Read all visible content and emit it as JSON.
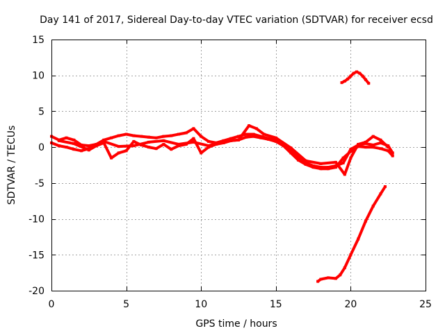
{
  "chart_data": {
    "type": "scatter",
    "title": "Day 141 of 2017, Sidereal Day-to-day VTEC variation (SDTVAR) for receiver ecsd",
    "xlabel": "GPS time / hours",
    "ylabel": "SDTVAR / TECUs",
    "xlim": [
      0,
      25
    ],
    "ylim": [
      -20,
      15
    ],
    "xticks": [
      0,
      5,
      10,
      15,
      20,
      25
    ],
    "yticks": [
      -20,
      -15,
      -10,
      -5,
      0,
      5,
      10,
      15
    ],
    "grid": true,
    "color": "#ff0000",
    "series": [
      {
        "name": "track-a",
        "x": [
          0.0,
          0.5,
          1.0,
          1.5,
          2.0,
          2.5,
          3.0,
          3.5,
          4.0,
          4.5,
          5.0,
          5.5,
          6.0,
          6.5,
          7.0,
          7.5,
          8.0,
          8.5,
          9.0,
          9.5,
          10.0,
          10.5,
          11.0,
          11.5,
          12.0,
          12.5,
          13.0,
          13.5,
          14.0,
          14.5,
          15.0,
          15.5,
          16.0,
          16.5,
          17.0,
          17.5,
          18.0,
          18.5,
          19.0,
          19.5,
          20.0,
          20.5,
          21.0,
          21.5,
          22.0,
          22.5,
          22.8
        ],
        "y": [
          1.5,
          1.0,
          1.3,
          1.0,
          0.3,
          0.2,
          0.4,
          1.0,
          1.3,
          1.6,
          1.8,
          1.6,
          1.5,
          1.4,
          1.3,
          1.5,
          1.6,
          1.8,
          2.0,
          2.6,
          1.5,
          0.8,
          0.6,
          0.9,
          1.2,
          1.5,
          1.8,
          1.8,
          1.5,
          1.2,
          1.0,
          0.5,
          -0.3,
          -1.4,
          -2.2,
          -2.6,
          -2.8,
          -2.8,
          -2.6,
          -2.2,
          -0.3,
          0.3,
          0.5,
          0.3,
          0.6,
          0.2,
          -0.8
        ]
      },
      {
        "name": "track-b",
        "x": [
          0.0,
          0.5,
          1.0,
          1.5,
          2.0,
          2.5,
          3.0,
          3.5,
          4.0,
          4.5,
          5.0,
          5.5,
          6.0,
          6.5,
          7.0,
          7.5,
          8.0,
          8.5,
          9.0,
          9.5,
          10.0,
          10.5,
          11.0,
          11.5,
          12.0,
          12.5,
          13.0,
          13.5,
          14.0,
          14.5,
          15.0,
          15.5,
          16.0,
          16.5,
          17.0,
          17.5,
          18.0,
          18.5,
          19.0,
          19.5,
          20.0,
          20.5,
          21.0,
          21.5,
          22.0,
          22.5,
          22.8
        ],
        "y": [
          0.6,
          0.2,
          0.0,
          -0.3,
          -0.5,
          -0.2,
          0.2,
          0.6,
          -1.5,
          -0.8,
          -0.5,
          0.8,
          0.3,
          0.0,
          -0.2,
          0.4,
          -0.3,
          0.2,
          0.4,
          1.2,
          -0.8,
          0.0,
          0.4,
          0.6,
          0.9,
          1.0,
          1.4,
          1.5,
          1.3,
          1.1,
          0.8,
          0.2,
          -0.8,
          -1.8,
          -2.4,
          -2.8,
          -3.0,
          -3.0,
          -2.8,
          -1.5,
          -0.6,
          0.1,
          0.0,
          0.0,
          -0.2,
          -0.5,
          -1.2
        ]
      },
      {
        "name": "track-c",
        "x": [
          0.5,
          1.5,
          2.5,
          3.5,
          4.5,
          5.5,
          6.5,
          7.5,
          8.5,
          9.5,
          10.5,
          11.5,
          12.5,
          13.2,
          13.7,
          14.2,
          15.0,
          16.0,
          17.0,
          18.0,
          19.0,
          19.6,
          20.0,
          20.5,
          21.0,
          21.5,
          22.0,
          22.5
        ],
        "y": [
          0.9,
          0.5,
          -0.4,
          0.8,
          0.1,
          0.2,
          0.7,
          0.9,
          0.4,
          0.7,
          0.2,
          0.8,
          1.0,
          3.0,
          2.6,
          1.8,
          1.3,
          -0.1,
          -1.9,
          -2.3,
          -2.1,
          -3.8,
          -1.5,
          0.4,
          0.7,
          1.5,
          1.0,
          0.0
        ]
      },
      {
        "name": "track-d",
        "x": [
          19.4,
          19.6,
          19.8,
          20.0,
          20.2,
          20.4,
          20.6,
          20.8,
          21.0,
          21.2
        ],
        "y": [
          9.0,
          9.2,
          9.5,
          9.9,
          10.3,
          10.5,
          10.3,
          9.9,
          9.4,
          8.9
        ]
      },
      {
        "name": "track-e",
        "x": [
          17.8,
          18.0,
          18.5,
          19.0,
          19.3,
          19.6,
          20.0,
          20.5,
          21.0,
          21.5,
          22.0,
          22.3
        ],
        "y": [
          -18.7,
          -18.4,
          -18.2,
          -18.3,
          -17.8,
          -16.8,
          -15.0,
          -12.8,
          -10.3,
          -8.2,
          -6.5,
          -5.5
        ]
      }
    ]
  }
}
